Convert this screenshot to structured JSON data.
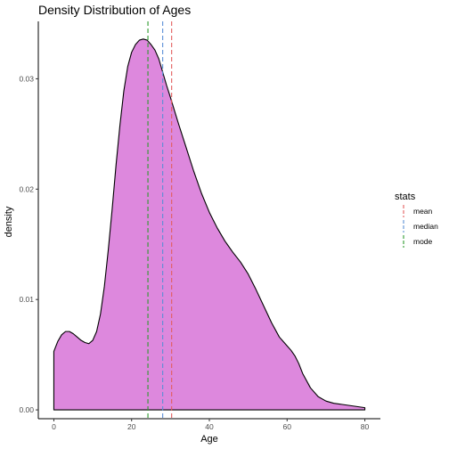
{
  "chart_data": {
    "type": "area",
    "title": "Density Distribution of Ages",
    "xlabel": "Age",
    "ylabel": "density",
    "xlim": [
      -4,
      84
    ],
    "ylim": [
      -0.0008,
      0.0352
    ],
    "x_ticks": [
      0,
      20,
      40,
      60,
      80
    ],
    "x_tick_labels": [
      "0",
      "20",
      "40",
      "60",
      "80"
    ],
    "y_ticks": [
      0,
      0.01,
      0.02,
      0.03
    ],
    "y_tick_labels": [
      "0.00",
      "0.01",
      "0.02",
      "0.03"
    ],
    "grid": false,
    "fill_color": "#dd88dd",
    "line_color": "#000000",
    "density": {
      "x": [
        0,
        1,
        2,
        3,
        4,
        5,
        6,
        7,
        8,
        9,
        10,
        11,
        12,
        13,
        14,
        15,
        16,
        17,
        18,
        19,
        20,
        21,
        22,
        23,
        24,
        25,
        26,
        27,
        28,
        29,
        30,
        32,
        34,
        36,
        38,
        40,
        42,
        44,
        46,
        48,
        50,
        52,
        54,
        56,
        58,
        60,
        61,
        62,
        63,
        64,
        66,
        68,
        70,
        72,
        74,
        76,
        78,
        80
      ],
      "y": [
        0.0053,
        0.0062,
        0.0068,
        0.0071,
        0.0071,
        0.0069,
        0.0066,
        0.0063,
        0.0061,
        0.006,
        0.0063,
        0.0071,
        0.0087,
        0.0112,
        0.0145,
        0.0182,
        0.0222,
        0.0258,
        0.0289,
        0.0311,
        0.0324,
        0.0331,
        0.0335,
        0.0336,
        0.0335,
        0.0331,
        0.0326,
        0.0318,
        0.0306,
        0.0294,
        0.0283,
        0.026,
        0.0238,
        0.0216,
        0.0196,
        0.0179,
        0.0165,
        0.0153,
        0.0143,
        0.0134,
        0.0123,
        0.0109,
        0.0094,
        0.0079,
        0.0066,
        0.0058,
        0.0054,
        0.0049,
        0.0042,
        0.0033,
        0.002,
        0.0012,
        0.0008,
        0.0006,
        0.0005,
        0.0004,
        0.0003,
        0.0002
      ]
    },
    "stat_lines": [
      {
        "name": "mean",
        "x": 30.3,
        "color": "#e35d5d"
      },
      {
        "name": "median",
        "x": 28,
        "color": "#5b8fd6"
      },
      {
        "name": "mode",
        "x": 24.2,
        "color": "#2e9a2e"
      }
    ],
    "legend": {
      "title": "stats",
      "position": "right",
      "entries": [
        "mean",
        "median",
        "mode"
      ]
    }
  }
}
